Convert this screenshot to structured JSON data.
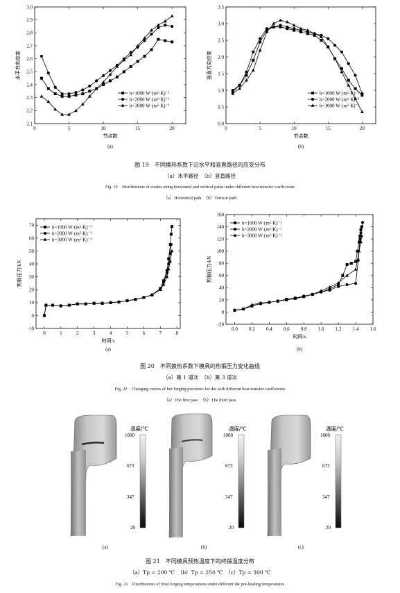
{
  "fig19": {
    "caption_cn": "图 19　不同换热系数下沿水平和竖直路径的应变分布",
    "sub_cn": "（a）水平路径　（b）竖直路径",
    "caption_en": "Fig. 19　Distributions of strains along horizontal and vertical paths under different heat transfer coefficients",
    "sub_en": "（a）Horizontal path　（b）Vertical path"
  },
  "fig20": {
    "caption_cn": "图 20　不同换热系数下模具的热锻压力变化曲线",
    "sub_cn": "（a）第 1 道次　（b）第 3 道次",
    "caption_en": "Fig. 20　Changing curves of hot forging pressures for die with different heat transfer coefficients",
    "sub_en": "（a）The first pass　（b）The third pass"
  },
  "fig21": {
    "caption_cn": "图 21　不同模具预热温度下的终锻温度分布",
    "sub_cn": "（a）Tp = 200 ℃　（b）Tp = 250 ℃　（c）Tp = 300 ℃",
    "caption_en": "Fig. 21　Distributions of final forging temperatures under different die pre-heating temperatures",
    "panels": [
      {
        "label": "(a)",
        "legend_title": "温度/℃",
        "ticks": [
          "1000",
          "673",
          "347",
          "20"
        ]
      },
      {
        "label": "(b)",
        "legend_title": "温度/℃",
        "ticks": [
          "1000",
          "673",
          "347",
          "20"
        ]
      },
      {
        "label": "(c)",
        "legend_title": "温度/℃",
        "ticks": [
          "1000",
          "673",
          "347",
          "20"
        ]
      }
    ]
  },
  "chart_data": [
    {
      "id": "fig19a",
      "type": "line",
      "panel_label": "(a)",
      "xlabel": "节点数",
      "ylabel": "水平方向应变",
      "xlim": [
        0,
        22
      ],
      "ylim": [
        2.1,
        3.0
      ],
      "xticks": [
        0,
        5,
        10,
        15,
        20
      ],
      "yticks": [
        2.1,
        2.2,
        2.3,
        2.4,
        2.5,
        2.6,
        2.7,
        2.8,
        2.9,
        3.0
      ],
      "legend_position": "bottom-right",
      "x": [
        1,
        2,
        3,
        4,
        5,
        6,
        7,
        8,
        9,
        10,
        11,
        12,
        13,
        14,
        15,
        16,
        17,
        18,
        19,
        20
      ],
      "series": [
        {
          "name": "h=1000 W·(m²·K)⁻¹",
          "marker": "square",
          "values": [
            2.45,
            2.37,
            2.33,
            2.31,
            2.31,
            2.32,
            2.33,
            2.35,
            2.37,
            2.4,
            2.43,
            2.46,
            2.5,
            2.54,
            2.58,
            2.62,
            2.67,
            2.75,
            2.74,
            2.73
          ]
        },
        {
          "name": "h=2000 W·(m²·K)⁻¹",
          "marker": "circle",
          "values": [
            2.62,
            2.49,
            2.38,
            2.33,
            2.33,
            2.34,
            2.36,
            2.39,
            2.43,
            2.47,
            2.51,
            2.55,
            2.6,
            2.65,
            2.69,
            2.74,
            2.79,
            2.84,
            2.86,
            2.85
          ]
        },
        {
          "name": "h=3000 W·(m²·K)⁻¹",
          "marker": "triangle",
          "values": [
            2.31,
            2.27,
            2.21,
            2.17,
            2.17,
            2.2,
            2.25,
            2.31,
            2.37,
            2.42,
            2.48,
            2.54,
            2.59,
            2.63,
            2.7,
            2.76,
            2.82,
            2.86,
            2.89,
            2.93
          ]
        }
      ]
    },
    {
      "id": "fig19b",
      "type": "line",
      "panel_label": "(b)",
      "xlabel": "节点数",
      "ylabel": "竖直方向应变",
      "xlim": [
        0,
        22
      ],
      "ylim": [
        0.0,
        3.5
      ],
      "xticks": [
        0,
        5,
        10,
        15,
        20
      ],
      "yticks": [
        0.0,
        0.5,
        1.0,
        1.5,
        2.0,
        2.5,
        3.0,
        3.5
      ],
      "legend_position": "bottom-right",
      "x": [
        1,
        2,
        3,
        4,
        5,
        6,
        7,
        8,
        9,
        10,
        11,
        12,
        13,
        14,
        15,
        16,
        17,
        18,
        19,
        20
      ],
      "series": [
        {
          "name": "h=1000 W·(m²·K)⁻¹",
          "marker": "square",
          "values": [
            0.95,
            1.15,
            1.45,
            1.9,
            2.45,
            2.8,
            2.9,
            2.9,
            2.85,
            2.8,
            2.75,
            2.7,
            2.65,
            2.5,
            2.3,
            1.95,
            1.65,
            1.3,
            1.05,
            0.85
          ]
        },
        {
          "name": "h=2000 W·(m²·K)⁻¹",
          "marker": "circle",
          "values": [
            1.0,
            1.15,
            1.55,
            2.15,
            2.55,
            2.85,
            2.9,
            2.95,
            2.9,
            2.85,
            2.8,
            2.75,
            2.7,
            2.65,
            2.55,
            2.35,
            2.15,
            1.8,
            1.45,
            0.9
          ]
        },
        {
          "name": "h=3000 W·(m²·K)⁻¹",
          "marker": "triangle",
          "values": [
            0.9,
            1.05,
            1.3,
            1.6,
            2.2,
            2.75,
            3.0,
            3.1,
            3.05,
            2.95,
            2.85,
            2.8,
            2.7,
            2.6,
            2.3,
            1.95,
            1.55,
            1.15,
            0.75,
            0.35
          ]
        }
      ]
    },
    {
      "id": "fig20a",
      "type": "line",
      "panel_label": "(a)",
      "xlabel": "时间/s",
      "ylabel": "热锻压力/kN",
      "xlim": [
        -0.5,
        8.2
      ],
      "ylim": [
        -10,
        75
      ],
      "xticks": [
        0,
        1,
        2,
        3,
        4,
        5,
        6,
        7,
        8
      ],
      "yticks": [
        -10,
        0,
        10,
        20,
        30,
        40,
        50,
        60,
        70
      ],
      "legend_position": "top-left",
      "series": [
        {
          "name": "h=1000 W·(m²·K)⁻¹",
          "marker": "square",
          "x": [
            0,
            0.1,
            0.5,
            1.0,
            1.5,
            2.0,
            2.5,
            3.0,
            3.5,
            4.0,
            4.5,
            5.0,
            5.5,
            6.0,
            6.5,
            7.0,
            7.2,
            7.4,
            7.5,
            7.6,
            7.65,
            7.7
          ],
          "y": [
            0,
            8,
            8,
            7.5,
            8,
            9,
            9,
            9.5,
            9.5,
            10,
            10.5,
            11.5,
            12.5,
            14,
            16,
            21,
            27,
            35,
            44,
            55,
            63,
            69
          ]
        },
        {
          "name": "h=2000 W·(m²·K)⁻¹",
          "marker": "circle",
          "x": [
            0,
            0.1,
            0.5,
            1.0,
            1.5,
            2.0,
            2.5,
            3.0,
            3.5,
            4.0,
            4.5,
            5.0,
            5.5,
            6.0,
            6.5,
            7.0,
            7.2,
            7.4,
            7.5,
            7.6,
            7.65
          ],
          "y": [
            0,
            8,
            8,
            7.5,
            8,
            9,
            9,
            9.5,
            9.5,
            10,
            10.5,
            11.5,
            12.5,
            14,
            16,
            21,
            26,
            33,
            40,
            48,
            55
          ]
        },
        {
          "name": "h=3000 W·(m²·K)⁻¹",
          "marker": "triangle",
          "x": [
            0,
            0.1,
            0.5,
            1.0,
            1.5,
            2.0,
            2.5,
            3.0,
            3.5,
            4.0,
            4.5,
            5.0,
            5.5,
            6.0,
            6.5,
            7.0,
            7.2,
            7.4,
            7.5,
            7.6,
            7.7
          ],
          "y": [
            0,
            8,
            8,
            7.5,
            8,
            9,
            9,
            9.5,
            9.5,
            10,
            10.5,
            11.5,
            12.5,
            14,
            16,
            20,
            24,
            30,
            36,
            42,
            50
          ]
        }
      ]
    },
    {
      "id": "fig20b",
      "type": "line",
      "panel_label": "(b)",
      "xlabel": "时间/s",
      "ylabel": "热锻压力/kN",
      "xlim": [
        -0.1,
        1.6
      ],
      "ylim": [
        -20,
        160
      ],
      "xticks": [
        0.0,
        0.2,
        0.4,
        0.6,
        0.8,
        1.0,
        1.2,
        1.4,
        1.6
      ],
      "yticks": [
        -20,
        0,
        20,
        40,
        60,
        80,
        100,
        120,
        140,
        160
      ],
      "legend_position": "top-left",
      "series": [
        {
          "name": "h=1000 W·(m²·K)⁻¹",
          "marker": "square",
          "x": [
            0.0,
            0.1,
            0.2,
            0.3,
            0.4,
            0.5,
            0.6,
            0.7,
            0.8,
            0.9,
            1.0,
            1.1,
            1.2,
            1.25,
            1.3,
            1.35,
            1.4,
            1.42,
            1.44,
            1.45,
            1.46,
            1.47
          ],
          "y": [
            3,
            5,
            10,
            14,
            16,
            18,
            21,
            23,
            26,
            29,
            33,
            38,
            45,
            60,
            78,
            80,
            83,
            100,
            115,
            125,
            135,
            140
          ]
        },
        {
          "name": "h=2000 W·(m²·K)⁻¹",
          "marker": "circle",
          "x": [
            0.0,
            0.1,
            0.2,
            0.3,
            0.4,
            0.5,
            0.6,
            0.7,
            0.8,
            0.9,
            1.0,
            1.1,
            1.2,
            1.3,
            1.4,
            1.43,
            1.45,
            1.46,
            1.47,
            1.48
          ],
          "y": [
            3,
            5,
            10,
            14,
            16,
            18,
            21,
            23,
            26,
            29,
            33,
            36,
            42,
            45,
            47,
            85,
            120,
            130,
            140,
            147
          ]
        },
        {
          "name": "h=3000 W·(m²·K)⁻¹",
          "marker": "triangle",
          "x": [
            0.0,
            0.1,
            0.2,
            0.3,
            0.4,
            0.5,
            0.6,
            0.7,
            0.8,
            0.9,
            1.0,
            1.1,
            1.2,
            1.3,
            1.4,
            1.42,
            1.44,
            1.46,
            1.47
          ],
          "y": [
            3,
            5,
            12,
            15,
            16,
            18,
            20,
            22,
            25,
            29,
            35,
            41,
            48,
            60,
            70,
            85,
            100,
            115,
            125
          ]
        }
      ]
    }
  ]
}
